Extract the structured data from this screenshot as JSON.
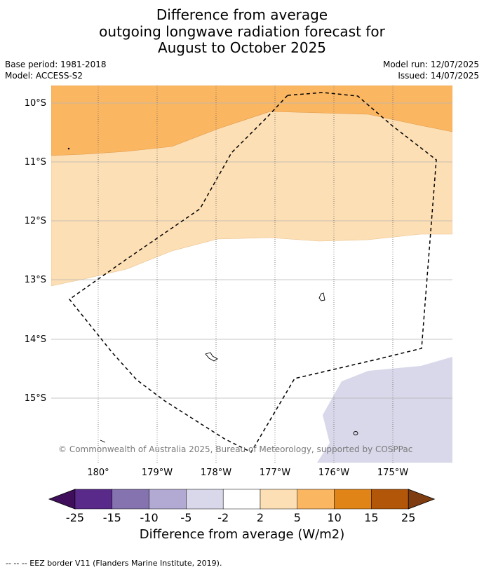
{
  "title": {
    "line1": "Difference from average",
    "line2": "outgoing longwave radiation forecast for",
    "line3": "August to October 2025"
  },
  "meta": {
    "base_period": "Base period: 1981-2018",
    "model": "Model: ACCESS-S2",
    "model_run": "Model run: 12/07/2025",
    "issued": "Issued: 14/07/2025"
  },
  "map": {
    "longitude_labels": [
      "180°",
      "179°W",
      "178°W",
      "177°W",
      "176°W",
      "175°W"
    ],
    "latitude_labels": [
      "10°S",
      "11°S",
      "12°S",
      "13°S",
      "14°S",
      "15°S"
    ],
    "copyright": "© Commonwealth of Australia 2025, Bureau of Meteorology, supported by COSPPac",
    "layers": {
      "anomaly_5_to_10": "orange",
      "anomaly_2_to_5": "light-orange",
      "anomaly_minus2_to_2": "white",
      "anomaly_minus5_to_minus2": "light-lavender",
      "eez_border": "dashed-line",
      "islands": "outline"
    }
  },
  "colorbar": {
    "ticks": [
      "-25",
      "-15",
      "-10",
      "-5",
      "-2",
      "2",
      "5",
      "10",
      "15",
      "25"
    ],
    "colors": [
      "#3f0f5c",
      "#5a2a8a",
      "#8473ae",
      "#b2aad2",
      "#d8d8ea",
      "#ffffff",
      "#fddfb5",
      "#fbb662",
      "#e08418",
      "#b25709",
      "#7e3c10"
    ],
    "label": "Difference from average (W/m2)"
  },
  "footer": {
    "text": "--  --  -- EEZ border V11 (Flanders Marine Institute, 2019)."
  }
}
